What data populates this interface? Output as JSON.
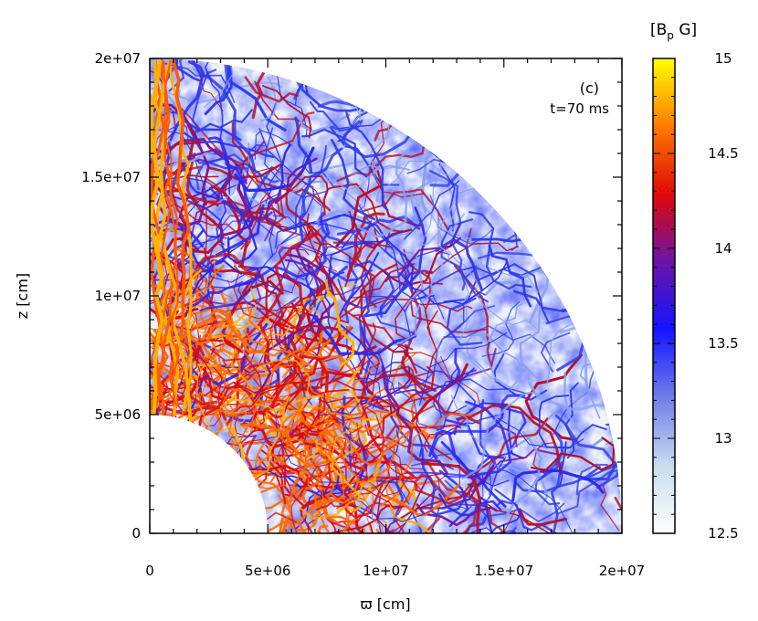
{
  "chart_data": [
    {
      "type": "heatmap",
      "panel_label": "(c)",
      "time_label": "t=70 ms",
      "xlabel": "ϖ [cm]",
      "ylabel": "z [cm]",
      "xlim": [
        0,
        20000000
      ],
      "ylim": [
        0,
        20000000
      ],
      "x_ticks": [
        {
          "value": 0,
          "label": "0"
        },
        {
          "value": 5000000,
          "label": "5e+06"
        },
        {
          "value": 10000000,
          "label": "1e+07"
        },
        {
          "value": 15000000,
          "label": "1.5e+07"
        },
        {
          "value": 20000000,
          "label": "2e+07"
        }
      ],
      "y_ticks": [
        {
          "value": 0,
          "label": "0"
        },
        {
          "value": 5000000,
          "label": "5e+06"
        },
        {
          "value": 10000000,
          "label": "1e+07"
        },
        {
          "value": 15000000,
          "label": "1.5e+07"
        },
        {
          "value": 20000000,
          "label": "2e+07"
        }
      ],
      "minor_tick_step": 1000000,
      "inner_boundary_radius": 5000000,
      "outer_boundary_radius": 20000000,
      "grid": false,
      "colorbar": {
        "title_base": "[B",
        "title_sub": "p",
        "title_rest": " G]",
        "scale": "log10",
        "range": [
          12.5,
          15
        ],
        "ticks": [
          {
            "value": 12.5,
            "label": "12.5"
          },
          {
            "value": 13,
            "label": "13"
          },
          {
            "value": 13.5,
            "label": "13.5"
          },
          {
            "value": 14,
            "label": "14"
          },
          {
            "value": 14.5,
            "label": "14.5"
          },
          {
            "value": 15,
            "label": "15"
          }
        ],
        "colors": [
          "#ffffff",
          "#c8dcee",
          "#6f7ee8",
          "#1414ff",
          "#6a14a8",
          "#e00808",
          "#ff7a00",
          "#ffff00"
        ]
      }
    }
  ]
}
